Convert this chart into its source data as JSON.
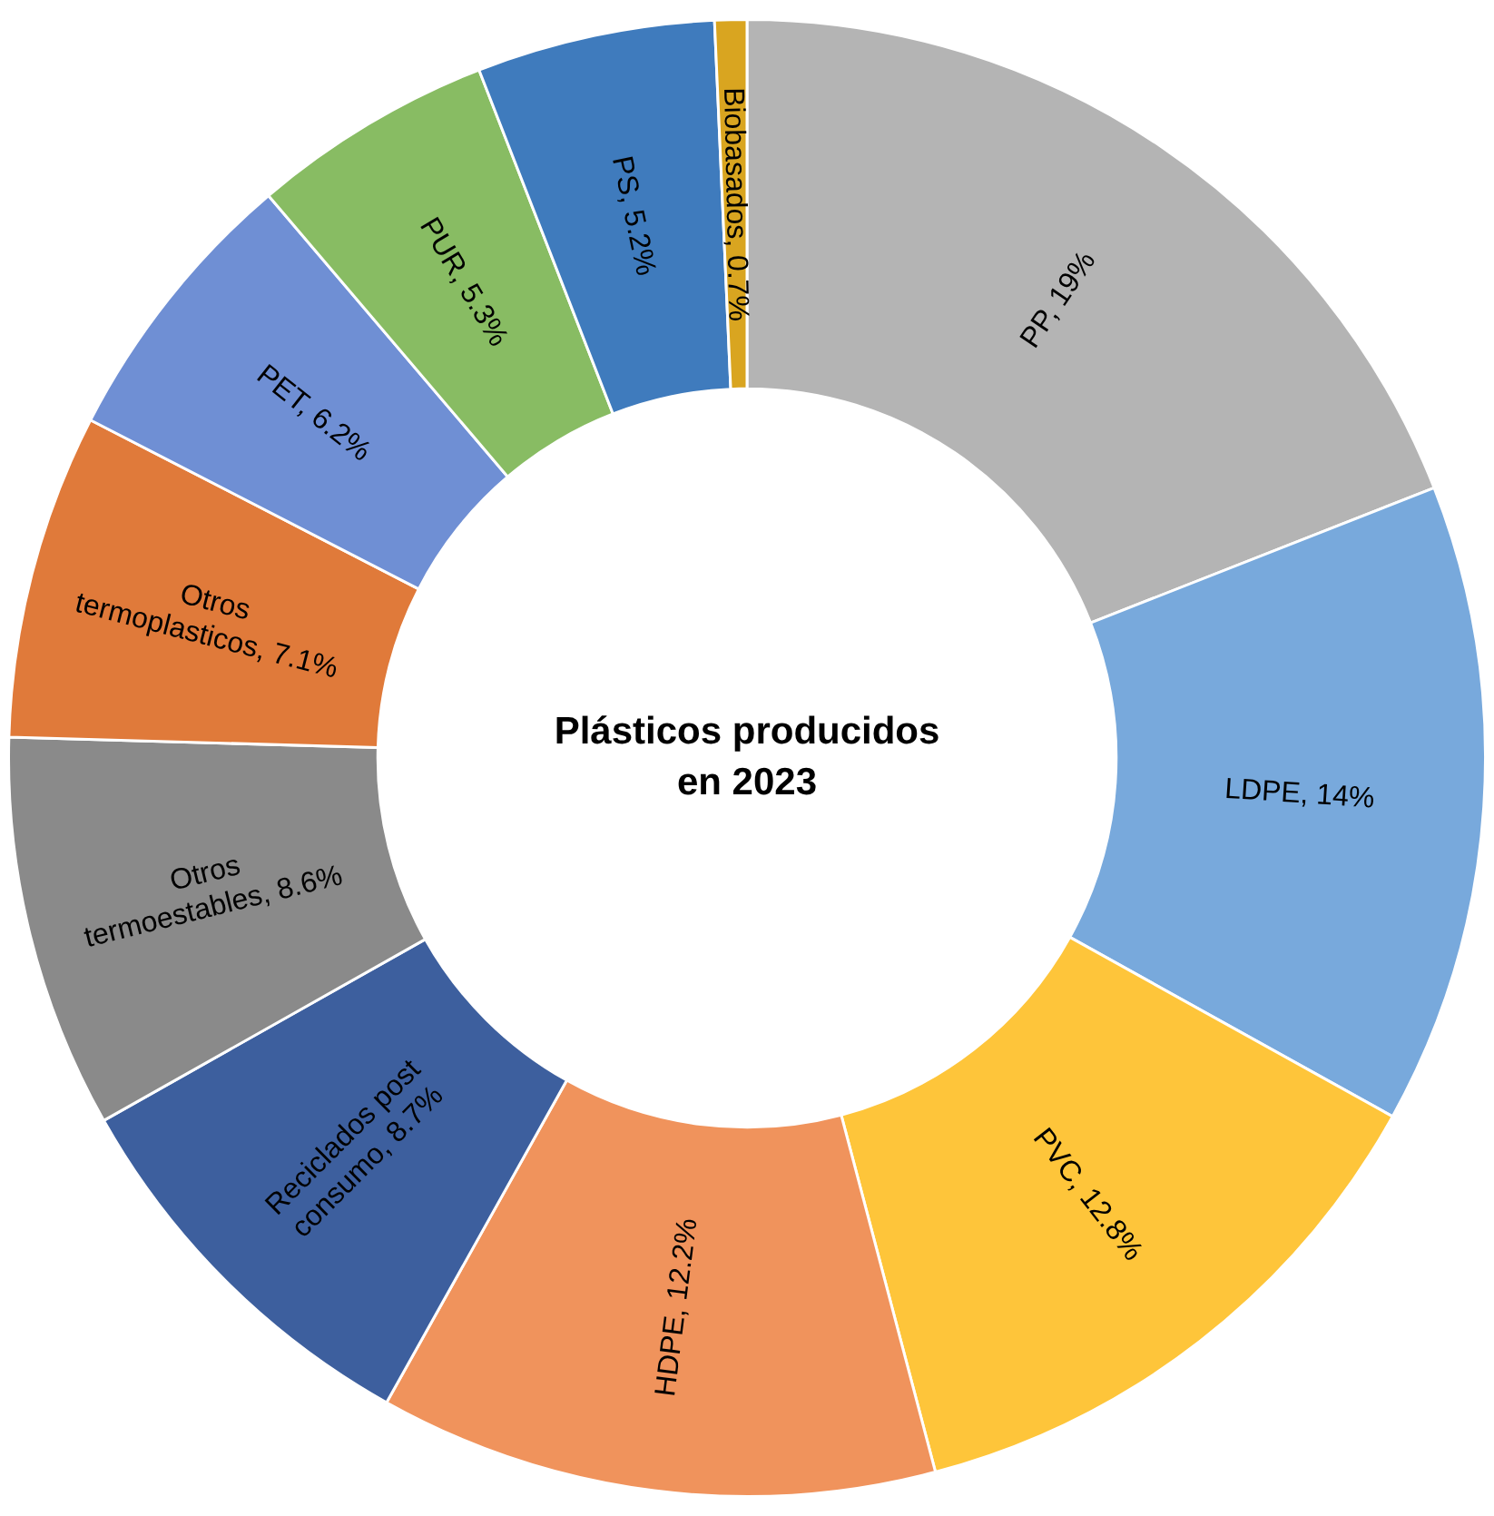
{
  "chart_data": {
    "type": "donut",
    "title": "Plásticos producidos en 2023",
    "categories": [
      "PP",
      "LDPE",
      "PVC",
      "HDPE",
      "Reciclados post consumo",
      "Otros termoestables",
      "Otros termoplasticos",
      "PET",
      "PUR",
      "PS",
      "Biobasados"
    ],
    "values": [
      19,
      14,
      12.8,
      12.2,
      8.7,
      8.6,
      7.1,
      6.2,
      5.3,
      5.2,
      0.7
    ],
    "value_labels": [
      "19%",
      "14%",
      "12.8%",
      "12.2%",
      "8.7%",
      "8.6%",
      "7.1%",
      "6.2%",
      "5.3%",
      "5.2%",
      "0.7%"
    ],
    "colors": [
      "#b4b4b4",
      "#78a9dc",
      "#fec53a",
      "#f0935c",
      "#3d5f9e",
      "#8a8a8a",
      "#e07a3a",
      "#6f8fd4",
      "#88bc63",
      "#3f7bbd",
      "#d9a520"
    ],
    "legend": false
  }
}
